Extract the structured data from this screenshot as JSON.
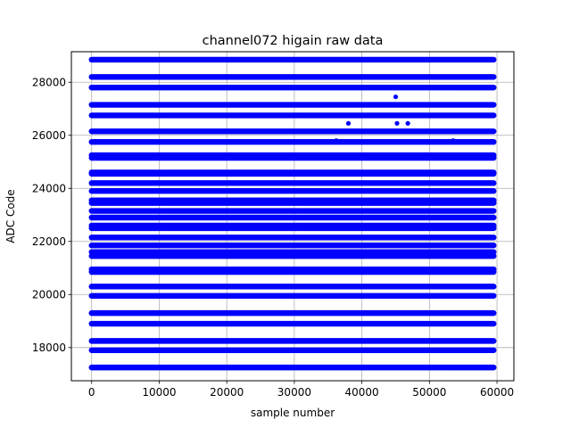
{
  "chart_data": {
    "type": "scatter",
    "title": "channel072 higain raw data",
    "xlabel": "sample number",
    "ylabel": "ADC Code",
    "xlim": [
      -3000,
      62500
    ],
    "ylim": [
      16750,
      29150
    ],
    "xticks": [
      0,
      10000,
      20000,
      30000,
      40000,
      50000,
      60000
    ],
    "xtick_labels": [
      "0",
      "10000",
      "20000",
      "30000",
      "40000",
      "50000",
      "60000"
    ],
    "yticks": [
      18000,
      20000,
      22000,
      24000,
      26000,
      28000
    ],
    "ytick_labels": [
      "18000",
      "20000",
      "22000",
      "24000",
      "26000",
      "28000"
    ],
    "grid": true,
    "marker_color": "#0000ff",
    "x_range": [
      0,
      59500
    ],
    "levels": [
      17250,
      17900,
      18250,
      18900,
      19300,
      19950,
      20300,
      20850,
      20950,
      21450,
      21600,
      21850,
      22150,
      22500,
      22600,
      22900,
      23150,
      23450,
      23550,
      23900,
      24200,
      24550,
      24600,
      25150,
      25250,
      25750,
      26150,
      26750,
      27150,
      27800,
      28200,
      28850
    ],
    "outliers": [
      {
        "x": 36200,
        "y": 25800
      },
      {
        "x": 38000,
        "y": 26450
      },
      {
        "x": 45000,
        "y": 27450
      },
      {
        "x": 45200,
        "y": 26450
      },
      {
        "x": 46800,
        "y": 26450
      },
      {
        "x": 53500,
        "y": 25800
      }
    ]
  }
}
